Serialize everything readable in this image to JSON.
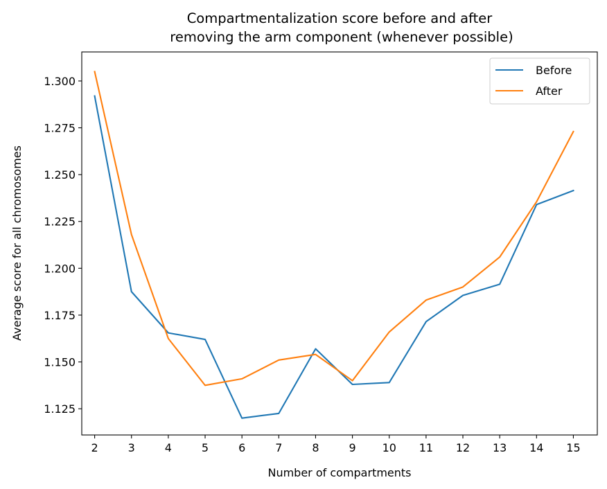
{
  "chart_data": {
    "type": "line",
    "title_line1": "Compartmentalization score before and after",
    "title_line2": "removing the arm component (whenever possible)",
    "xlabel": "Number of compartments",
    "ylabel": "Average score for all chromosomes",
    "x": [
      2,
      3,
      4,
      5,
      6,
      7,
      8,
      9,
      10,
      11,
      12,
      13,
      14,
      15
    ],
    "xlim": [
      1.65,
      15.65
    ],
    "ylim": [
      1.111,
      1.3155
    ],
    "yticks": [
      1.125,
      1.15,
      1.175,
      1.2,
      1.225,
      1.25,
      1.275,
      1.3
    ],
    "ytick_labels": [
      "1.125",
      "1.150",
      "1.175",
      "1.200",
      "1.225",
      "1.250",
      "1.275",
      "1.300"
    ],
    "grid": false,
    "legend_position": "top-right",
    "series": [
      {
        "name": "Before",
        "color": "#1f77b4",
        "values": [
          1.292,
          1.1875,
          1.1655,
          1.162,
          1.12,
          1.1225,
          1.157,
          1.138,
          1.139,
          1.1715,
          1.1855,
          1.1915,
          1.234,
          1.2415
        ]
      },
      {
        "name": "After",
        "color": "#ff7f0e",
        "values": [
          1.305,
          1.218,
          1.1625,
          1.1375,
          1.141,
          1.151,
          1.154,
          1.14,
          1.166,
          1.183,
          1.19,
          1.206,
          1.2355,
          1.273
        ]
      }
    ]
  }
}
